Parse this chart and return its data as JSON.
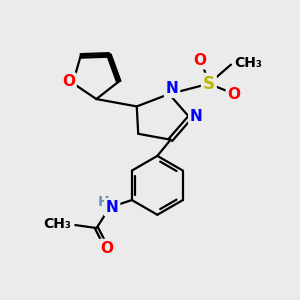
{
  "bg_color": "#ebebeb",
  "bond_color": "#000000",
  "atom_colors": {
    "O": "#ff0000",
    "N": "#0000ff",
    "S": "#b8b800",
    "H": "#6699aa",
    "C": "#000000"
  },
  "bond_width": 1.6,
  "font_size_atoms": 10,
  "font_size_small": 9
}
